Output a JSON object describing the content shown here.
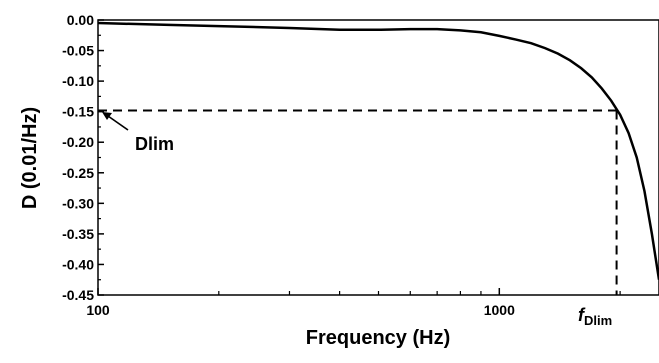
{
  "chart_data": {
    "type": "line",
    "x_scale": "log",
    "xlim": [
      100,
      2500
    ],
    "ylim": [
      -0.45,
      0.0
    ],
    "xlabel": "Frequency (Hz)",
    "ylabel": "D (0.01/Hz)",
    "x_ticks": [
      {
        "value": 100,
        "label": "100"
      },
      {
        "value": 1000,
        "label": "1000"
      }
    ],
    "y_ticks": [
      {
        "value": 0.0,
        "label": "0.00"
      },
      {
        "value": -0.05,
        "label": "-0.05"
      },
      {
        "value": -0.1,
        "label": "-0.10"
      },
      {
        "value": -0.15,
        "label": "-0.15"
      },
      {
        "value": -0.2,
        "label": "-0.20"
      },
      {
        "value": -0.25,
        "label": "-0.25"
      },
      {
        "value": -0.3,
        "label": "-0.30"
      },
      {
        "value": -0.35,
        "label": "-0.35"
      },
      {
        "value": -0.4,
        "label": "-0.40"
      },
      {
        "value": -0.45,
        "label": "-0.45"
      }
    ],
    "series": [
      {
        "x": [
          100,
          150,
          200,
          300,
          400,
          500,
          600,
          700,
          800,
          900,
          1000,
          1100,
          1200,
          1300,
          1400,
          1500,
          1600,
          1700,
          1800,
          1900,
          2000,
          2100,
          2200,
          2300,
          2400,
          2500
        ],
        "y": [
          -0.005,
          -0.008,
          -0.01,
          -0.013,
          -0.016,
          -0.016,
          -0.015,
          -0.015,
          -0.017,
          -0.02,
          -0.026,
          -0.032,
          -0.038,
          -0.046,
          -0.055,
          -0.066,
          -0.079,
          -0.094,
          -0.112,
          -0.132,
          -0.155,
          -0.185,
          -0.225,
          -0.28,
          -0.35,
          -0.425
        ]
      }
    ],
    "reference": {
      "x": 1960,
      "y": -0.148
    },
    "annotations": {
      "dlim_label": "Dlim",
      "f_main": "f",
      "f_sub": "Dlim"
    }
  }
}
